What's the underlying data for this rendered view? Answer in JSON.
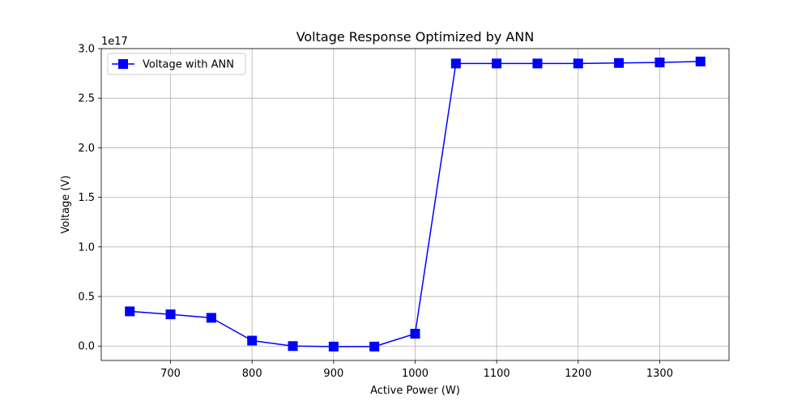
{
  "chart_data": {
    "type": "line",
    "title": "Voltage Response Optimized by ANN",
    "xlabel": "Active Power (W)",
    "ylabel": "Voltage (V)",
    "y_offset_label": "1e17",
    "y_multiplier": 1e+17,
    "xlim": [
      615,
      1385
    ],
    "ylim": [
      -0.145,
      3.0
    ],
    "xticks": [
      700,
      800,
      900,
      1000,
      1100,
      1200,
      1300
    ],
    "xtick_labels": [
      "700",
      "800",
      "900",
      "1000",
      "1100",
      "1200",
      "1300"
    ],
    "yticks": [
      0.0,
      0.5,
      1.0,
      1.5,
      2.0,
      2.5,
      3.0
    ],
    "ytick_labels": [
      "0.0",
      "0.5",
      "1.0",
      "1.5",
      "2.0",
      "2.5",
      "3.0"
    ],
    "grid": true,
    "legend_position": "upper-left",
    "series": [
      {
        "name": "Voltage with ANN",
        "color": "#0000ff",
        "marker": "square",
        "x": [
          650,
          700,
          750,
          800,
          850,
          900,
          950,
          1000,
          1050,
          1100,
          1150,
          1200,
          1250,
          1300,
          1350
        ],
        "y": [
          0.35,
          0.32,
          0.285,
          0.055,
          0.0,
          -0.005,
          -0.005,
          0.125,
          2.85,
          2.85,
          2.85,
          2.85,
          2.855,
          2.86,
          2.87
        ]
      }
    ]
  }
}
